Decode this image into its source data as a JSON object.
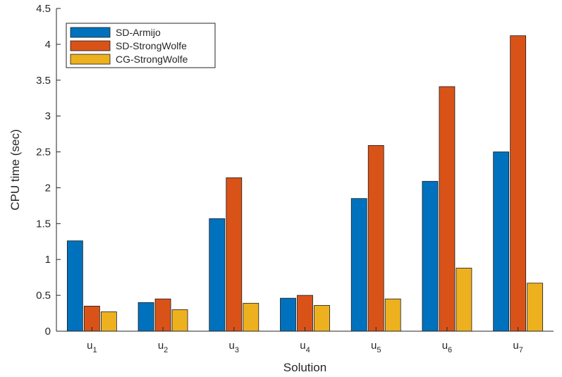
{
  "chart_data": {
    "type": "bar",
    "title": "",
    "xlabel": "Solution",
    "ylabel": "CPU time (sec)",
    "ylim": [
      0,
      4.5
    ],
    "yticks": [
      0,
      0.5,
      1,
      1.5,
      2,
      2.5,
      3,
      3.5,
      4,
      4.5
    ],
    "grid": false,
    "legend_position": "top-left",
    "categories": [
      {
        "base": "u",
        "sub": "1"
      },
      {
        "base": "u",
        "sub": "2"
      },
      {
        "base": "u",
        "sub": "3"
      },
      {
        "base": "u",
        "sub": "4"
      },
      {
        "base": "u",
        "sub": "5"
      },
      {
        "base": "u",
        "sub": "6"
      },
      {
        "base": "u",
        "sub": "7"
      }
    ],
    "series": [
      {
        "name": "SD-Armijo",
        "color": "#0072BD",
        "values": [
          1.26,
          0.4,
          1.57,
          0.46,
          1.85,
          2.09,
          2.5
        ]
      },
      {
        "name": "SD-StrongWolfe",
        "color": "#D95319",
        "values": [
          0.35,
          0.45,
          2.14,
          0.5,
          2.59,
          3.41,
          4.12
        ]
      },
      {
        "name": "CG-StrongWolfe",
        "color": "#EDB120",
        "values": [
          0.27,
          0.3,
          0.39,
          0.36,
          0.45,
          0.88,
          0.67
        ]
      }
    ]
  }
}
